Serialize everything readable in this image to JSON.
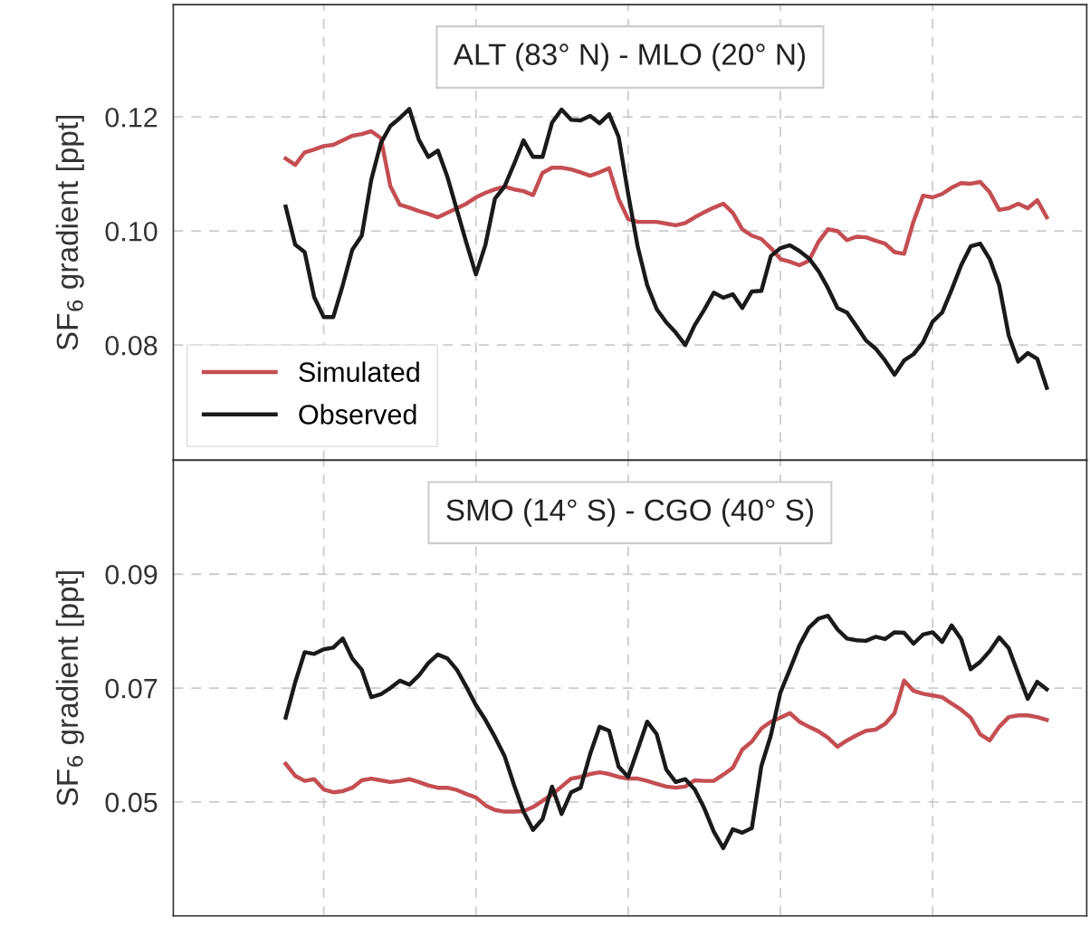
{
  "chart_data": [
    {
      "type": "line",
      "title": "ALT (83° N) - MLO (20° N)",
      "ylabel": "SF$_{6}$ gradient [ppt]",
      "categories": [
        null,
        null,
        null,
        null,
        null,
        null,
        null,
        null,
        null,
        null,
        null,
        null,
        null,
        null,
        null,
        null,
        null,
        null,
        null,
        null,
        null,
        null,
        null,
        null,
        null,
        null,
        null,
        null,
        null,
        null,
        null,
        null,
        null,
        null,
        null,
        null,
        null,
        null,
        null,
        null,
        null,
        null,
        null,
        null,
        null,
        null,
        null,
        null,
        null,
        null,
        null,
        null,
        null,
        null,
        null,
        null,
        null,
        null,
        null,
        null,
        null,
        null,
        null,
        null,
        null,
        null,
        null,
        null,
        null,
        null,
        null,
        null,
        null,
        null,
        null,
        null,
        null,
        null,
        null,
        null,
        null
      ],
      "ylim": [
        0.0598,
        0.1397
      ],
      "yticks": [
        0.08,
        {
          "value": 0.1,
          "label": "0.10"
        },
        0.12
      ],
      "tick_labels": "y",
      "grid": true,
      "legend": "bottom left",
      "series": [
        {
          "name": "Simulated",
          "color": "#c44e52",
          "values": [
            0.1127,
            0.1116,
            0.1138,
            0.1143,
            0.1149,
            0.1151,
            0.1159,
            0.1167,
            0.117,
            0.1175,
            0.1163,
            0.1079,
            0.1046,
            0.1041,
            0.1035,
            0.103,
            0.1024,
            0.1032,
            0.104,
            0.1048,
            0.1059,
            0.1067,
            0.1073,
            0.1078,
            0.1073,
            0.107,
            0.1063,
            0.1102,
            0.1111,
            0.1111,
            0.1108,
            0.1103,
            0.1097,
            0.1103,
            0.111,
            0.1056,
            0.1021,
            0.1016,
            0.1016,
            0.1016,
            0.1013,
            0.101,
            0.1014,
            0.1024,
            0.1033,
            0.1041,
            0.1048,
            0.1032,
            0.1003,
            0.0992,
            0.0986,
            0.097,
            0.0951,
            0.0946,
            0.094,
            0.0948,
            0.0981,
            0.1003,
            0.1,
            0.0984,
            0.099,
            0.0989,
            0.0983,
            0.0978,
            0.0963,
            0.096,
            0.1017,
            0.1062,
            0.1059,
            0.1065,
            0.1076,
            0.1084,
            0.1083,
            0.1086,
            0.1068,
            0.1037,
            0.104,
            0.1048,
            0.104,
            0.1054,
            0.1024
          ]
        },
        {
          "name": "Observed",
          "color": "#1a1a1a",
          "values": [
            0.1043,
            0.0976,
            0.0963,
            0.0884,
            0.0849,
            0.0849,
            0.0905,
            0.0967,
            0.0992,
            0.109,
            0.1154,
            0.1184,
            0.1198,
            0.1214,
            0.116,
            0.113,
            0.1141,
            0.1095,
            0.1037,
            0.0979,
            0.0924,
            0.0976,
            0.1057,
            0.1078,
            0.1117,
            0.1159,
            0.113,
            0.113,
            0.119,
            0.1213,
            0.1195,
            0.1194,
            0.1202,
            0.1189,
            0.1205,
            0.1165,
            0.1065,
            0.0973,
            0.0905,
            0.0863,
            0.084,
            0.0822,
            0.08,
            0.0835,
            0.0862,
            0.0892,
            0.0883,
            0.0889,
            0.0865,
            0.0894,
            0.0895,
            0.0956,
            0.097,
            0.0975,
            0.0965,
            0.0952,
            0.093,
            0.09,
            0.0865,
            0.0857,
            0.0833,
            0.0808,
            0.0794,
            0.0773,
            0.0748,
            0.0773,
            0.0784,
            0.0805,
            0.0841,
            0.0857,
            0.0897,
            0.094,
            0.0973,
            0.0978,
            0.0951,
            0.0905,
            0.0817,
            0.0771,
            0.0786,
            0.0776,
            0.0725
          ]
        }
      ]
    },
    {
      "type": "line",
      "title": "SMO (14° S) - CGO (40° S)",
      "ylabel": "SF$_{6}$ gradient [ppt]",
      "categories": [
        null,
        null,
        null,
        null,
        null,
        null,
        null,
        null,
        null,
        null,
        null,
        null,
        null,
        null,
        null,
        null,
        null,
        null,
        null,
        null,
        null,
        null,
        null,
        null,
        null,
        null,
        null,
        null,
        null,
        null,
        null,
        null,
        null,
        null,
        null,
        null,
        null,
        null,
        null,
        null,
        null,
        null,
        null,
        null,
        null,
        null,
        null,
        null,
        null,
        null,
        null,
        null,
        null,
        null,
        null,
        null,
        null,
        null,
        null,
        null,
        null,
        null,
        null,
        null,
        null,
        null,
        null,
        null,
        null,
        null,
        null,
        null,
        null,
        null,
        null,
        null,
        null,
        null,
        null,
        null,
        null
      ],
      "ylim": [
        0.03,
        0.11
      ],
      "yticks": [
        0.05,
        0.07,
        0.09
      ],
      "tick_labels": "y",
      "grid": true,
      "series": [
        {
          "color": "#c44e52",
          "values": [
            0.0567,
            0.0546,
            0.0537,
            0.054,
            0.0522,
            0.0517,
            0.0519,
            0.0525,
            0.0538,
            0.0541,
            0.0538,
            0.0535,
            0.0537,
            0.054,
            0.0535,
            0.0529,
            0.0525,
            0.0525,
            0.0521,
            0.0514,
            0.0508,
            0.0494,
            0.0486,
            0.0483,
            0.0483,
            0.0484,
            0.0491,
            0.0502,
            0.0513,
            0.0527,
            0.0541,
            0.0544,
            0.0549,
            0.0552,
            0.0549,
            0.0544,
            0.0541,
            0.0541,
            0.0537,
            0.0532,
            0.0527,
            0.0525,
            0.0527,
            0.0538,
            0.0537,
            0.0537,
            0.0548,
            0.056,
            0.0592,
            0.0606,
            0.0629,
            0.0641,
            0.0648,
            0.0656,
            0.0641,
            0.0632,
            0.0624,
            0.0613,
            0.0597,
            0.0608,
            0.0617,
            0.0625,
            0.0627,
            0.0637,
            0.0656,
            0.0713,
            0.0695,
            0.069,
            0.0687,
            0.0684,
            0.0673,
            0.0662,
            0.0648,
            0.0619,
            0.0608,
            0.0632,
            0.0649,
            0.0652,
            0.0652,
            0.0649,
            0.0644
          ]
        },
        {
          "color": "#1a1a1a",
          "values": [
            0.0648,
            0.071,
            0.0763,
            0.076,
            0.0768,
            0.0771,
            0.0787,
            0.0752,
            0.0732,
            0.0684,
            0.0689,
            0.07,
            0.0713,
            0.0706,
            0.0722,
            0.0744,
            0.0759,
            0.0752,
            0.0732,
            0.0702,
            0.067,
            0.0644,
            0.0614,
            0.0581,
            0.053,
            0.0483,
            0.0451,
            0.047,
            0.0527,
            0.0479,
            0.0517,
            0.0525,
            0.0584,
            0.0632,
            0.0625,
            0.0562,
            0.0544,
            0.0592,
            0.0641,
            0.0619,
            0.0557,
            0.0535,
            0.054,
            0.0522,
            0.0489,
            0.0448,
            0.0419,
            0.0452,
            0.0446,
            0.0454,
            0.0563,
            0.0617,
            0.0692,
            0.0733,
            0.0775,
            0.0806,
            0.0822,
            0.0827,
            0.0803,
            0.0787,
            0.0784,
            0.0783,
            0.079,
            0.0786,
            0.0798,
            0.0797,
            0.0778,
            0.0794,
            0.0798,
            0.0781,
            0.081,
            0.0786,
            0.0733,
            0.0746,
            0.0765,
            0.0789,
            0.077,
            0.0725,
            0.0681,
            0.0711,
            0.0698
          ]
        }
      ]
    }
  ]
}
